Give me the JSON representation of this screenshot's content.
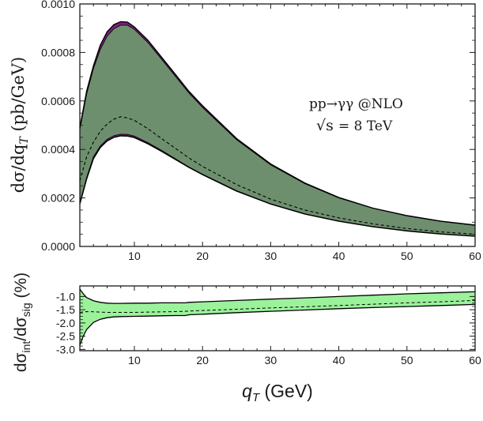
{
  "chart_data": [
    {
      "type": "area",
      "ylabel": "dσ/dq",
      "ylabel_sub": "T",
      "ylabel_unit": " (pb/GeV)",
      "annotation_process": "pp→γγ @NLO",
      "annotation_energy": "= 8 TeV",
      "annotation_sqrt": "√s",
      "xlim": [
        2,
        60
      ],
      "ylim": [
        0,
        0.001
      ],
      "xticks": [
        "10",
        "20",
        "30",
        "40",
        "50",
        "60"
      ],
      "xtick_values": [
        10,
        20,
        30,
        40,
        50,
        60
      ],
      "yticks": [
        "0.0000",
        "0.0002",
        "0.0004",
        "0.0006",
        "0.0008",
        "0.0010"
      ],
      "ytick_values": [
        0,
        0.0002,
        0.0004,
        0.0006,
        0.0008,
        0.001
      ],
      "x": [
        2,
        3,
        4,
        5,
        6,
        7,
        8,
        9,
        10,
        12,
        14,
        16,
        18,
        20,
        25,
        30,
        35,
        40,
        45,
        50,
        55,
        60
      ],
      "series": [
        {
          "role": "outer_upper",
          "values": [
            0.00049,
            0.00064,
            0.000745,
            0.00083,
            0.000885,
            0.000915,
            0.000927,
            0.000925,
            0.000905,
            0.00085,
            0.00078,
            0.00071,
            0.00064,
            0.00058,
            0.000445,
            0.00034,
            0.000262,
            0.000202,
            0.000158,
            0.000127,
            0.000104,
            8.8e-05
          ]
        },
        {
          "role": "inner_upper",
          "values": [
            0.00048,
            0.000628,
            0.000733,
            0.000812,
            0.000867,
            0.000898,
            0.000912,
            0.000912,
            0.000895,
            0.00084,
            0.000772,
            0.000702,
            0.000633,
            0.000573,
            0.00044,
            0.000336,
            0.000259,
            0.0002,
            0.000157,
            0.000126,
            0.000103,
            8.7e-05
          ]
        },
        {
          "role": "central",
          "values": [
            0.00027,
            0.00037,
            0.00043,
            0.000475,
            0.000505,
            0.000525,
            0.000535,
            0.00053,
            0.00052,
            0.000485,
            0.000445,
            0.000405,
            0.000365,
            0.00033,
            0.000255,
            0.000195,
            0.00015,
            0.000118,
            9.3e-05,
            7.4e-05,
            6e-05,
            5e-05
          ]
        },
        {
          "role": "inner_lower",
          "values": [
            0.00018,
            0.000285,
            0.00037,
            0.000415,
            0.000442,
            0.000457,
            0.000463,
            0.000462,
            0.000455,
            0.000428,
            0.000396,
            0.000362,
            0.000328,
            0.000298,
            0.00023,
            0.000176,
            0.000135,
            0.000105,
            8.2e-05,
            6.5e-05,
            5.2e-05,
            4.3e-05
          ]
        },
        {
          "role": "outer_lower",
          "values": [
            0.000175,
            0.000278,
            0.000362,
            0.000408,
            0.000435,
            0.00045,
            0.000456,
            0.000455,
            0.000449,
            0.000423,
            0.000392,
            0.000359,
            0.000326,
            0.000296,
            0.000228,
            0.000175,
            0.000134,
            0.000104,
            8.1e-05,
            6.4e-05,
            5.1e-05,
            4.2e-05
          ]
        }
      ],
      "colors": {
        "band": "#6e8f6e",
        "outer_band": "#7a1f7a",
        "line": "#000000"
      }
    },
    {
      "type": "area",
      "xlabel": "q",
      "xlabel_sub": "T",
      "xlabel_unit": " (GeV)",
      "ylabel_num": "dσ",
      "ylabel_num_sub": "int",
      "ylabel_den": "/dσ",
      "ylabel_den_sub": "sig",
      "ylabel_unit": " (%)",
      "xlim": [
        2,
        60
      ],
      "ylim": [
        -3.05,
        -0.6
      ],
      "xticks": [
        "10",
        "20",
        "30",
        "40",
        "50",
        "60"
      ],
      "xtick_values": [
        10,
        20,
        30,
        40,
        50,
        60
      ],
      "yticks": [
        "-1.0",
        "-1.5",
        "-2.0",
        "-2.5",
        "-3.0"
      ],
      "ytick_values": [
        -1.0,
        -1.5,
        -2.0,
        -2.5,
        -3.0
      ],
      "x": [
        2,
        2.5,
        3,
        4,
        5,
        6,
        7,
        8,
        10,
        12,
        14,
        16,
        17.5,
        18,
        20,
        25,
        30,
        35,
        40,
        45,
        50,
        55,
        60
      ],
      "series": [
        {
          "role": "upper",
          "values": [
            -0.72,
            -0.9,
            -1.04,
            -1.16,
            -1.22,
            -1.25,
            -1.26,
            -1.26,
            -1.25,
            -1.25,
            -1.24,
            -1.24,
            -1.24,
            -1.22,
            -1.2,
            -1.15,
            -1.1,
            -1.05,
            -1.0,
            -0.95,
            -0.9,
            -0.86,
            -0.82
          ]
        },
        {
          "role": "central",
          "values": [
            -1.6,
            -1.58,
            -1.57,
            -1.58,
            -1.59,
            -1.6,
            -1.6,
            -1.6,
            -1.6,
            -1.59,
            -1.58,
            -1.57,
            -1.56,
            -1.55,
            -1.53,
            -1.48,
            -1.43,
            -1.39,
            -1.34,
            -1.29,
            -1.24,
            -1.2,
            -1.15
          ]
        },
        {
          "role": "lower",
          "values": [
            -2.85,
            -2.5,
            -2.25,
            -1.98,
            -1.86,
            -1.8,
            -1.77,
            -1.76,
            -1.75,
            -1.74,
            -1.73,
            -1.72,
            -1.72,
            -1.69,
            -1.67,
            -1.61,
            -1.56,
            -1.51,
            -1.46,
            -1.42,
            -1.38,
            -1.34,
            -1.3
          ]
        }
      ],
      "colors": {
        "band": "#9bf29b",
        "line": "#000000"
      }
    }
  ]
}
